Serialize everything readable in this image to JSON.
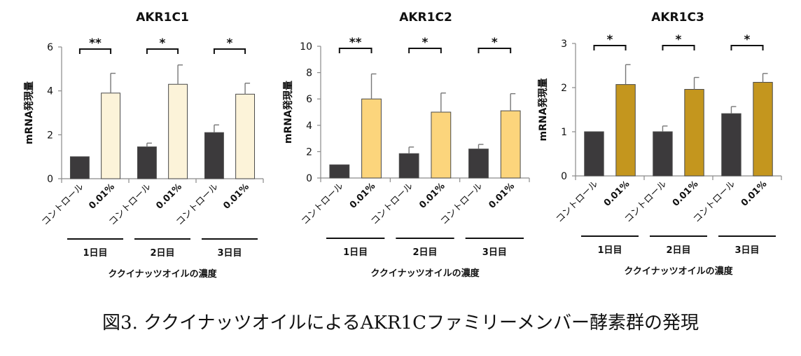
{
  "caption": "図3. ククイナッツオイルによるAKR1Cファミリーメンバー酵素群の発現",
  "colors": {
    "control": "#3c3a3c",
    "axis": "#8a8a8a",
    "text": "#111111"
  },
  "chart_data": [
    {
      "type": "bar",
      "title": "AKR1C1",
      "ylabel": "mRNA発現量",
      "xlabel": "ククイナッツオイルの濃度",
      "ylim": [
        0,
        6
      ],
      "yticks": [
        0,
        2,
        4,
        6
      ],
      "groups": [
        {
          "label": "1日目",
          "bars": [
            {
              "label": "コントロール",
              "value": 1.0,
              "error": 0.0,
              "color": "#3c3a3c"
            },
            {
              "label": "0.01%",
              "value": 3.9,
              "error": 0.9,
              "color": "#fcf3d9"
            }
          ],
          "significance": "**"
        },
        {
          "label": "2日目",
          "bars": [
            {
              "label": "コントロール",
              "value": 1.45,
              "error": 0.17,
              "color": "#3c3a3c"
            },
            {
              "label": "0.01%",
              "value": 4.3,
              "error": 0.88,
              "color": "#fcf3d9"
            }
          ],
          "significance": "*"
        },
        {
          "label": "3日目",
          "bars": [
            {
              "label": "コントロール",
              "value": 2.1,
              "error": 0.35,
              "color": "#3c3a3c"
            },
            {
              "label": "0.01%",
              "value": 3.85,
              "error": 0.5,
              "color": "#fcf3d9"
            }
          ],
          "significance": "*"
        }
      ]
    },
    {
      "type": "bar",
      "title": "AKR1C2",
      "ylabel": "mRNA発現量",
      "xlabel": "ククイナッツオイルの濃度",
      "ylim": [
        0,
        10
      ],
      "yticks": [
        0,
        2,
        4,
        6,
        8,
        10
      ],
      "groups": [
        {
          "label": "1日目",
          "bars": [
            {
              "label": "コントロール",
              "value": 1.0,
              "error": 0.0,
              "color": "#3c3a3c"
            },
            {
              "label": "0.01%",
              "value": 6.0,
              "error": 1.9,
              "color": "#fcd57c"
            }
          ],
          "significance": "**"
        },
        {
          "label": "2日目",
          "bars": [
            {
              "label": "コントロール",
              "value": 1.85,
              "error": 0.5,
              "color": "#3c3a3c"
            },
            {
              "label": "0.01%",
              "value": 5.0,
              "error": 1.45,
              "color": "#fcd57c"
            }
          ],
          "significance": "*"
        },
        {
          "label": "3日目",
          "bars": [
            {
              "label": "コントロール",
              "value": 2.2,
              "error": 0.35,
              "color": "#3c3a3c"
            },
            {
              "label": "0.01%",
              "value": 5.1,
              "error": 1.3,
              "color": "#fcd57c"
            }
          ],
          "significance": "*"
        }
      ]
    },
    {
      "type": "bar",
      "title": "AKR1C3",
      "ylabel": "mRNA発現量",
      "xlabel": "ククイナッツオイルの濃度",
      "ylim": [
        0,
        3
      ],
      "yticks": [
        0,
        1,
        2,
        3
      ],
      "groups": [
        {
          "label": "1日目",
          "bars": [
            {
              "label": "コントロール",
              "value": 1.0,
              "error": 0.0,
              "color": "#3c3a3c"
            },
            {
              "label": "0.01%",
              "value": 2.07,
              "error": 0.45,
              "color": "#c4961e"
            }
          ],
          "significance": "*"
        },
        {
          "label": "2日目",
          "bars": [
            {
              "label": "コントロール",
              "value": 1.0,
              "error": 0.13,
              "color": "#3c3a3c"
            },
            {
              "label": "0.01%",
              "value": 1.96,
              "error": 0.27,
              "color": "#c4961e"
            }
          ],
          "significance": "*"
        },
        {
          "label": "3日目",
          "bars": [
            {
              "label": "コントロール",
              "value": 1.41,
              "error": 0.16,
              "color": "#3c3a3c"
            },
            {
              "label": "0.01%",
              "value": 2.12,
              "error": 0.2,
              "color": "#c4961e"
            }
          ],
          "significance": "*"
        }
      ]
    }
  ]
}
